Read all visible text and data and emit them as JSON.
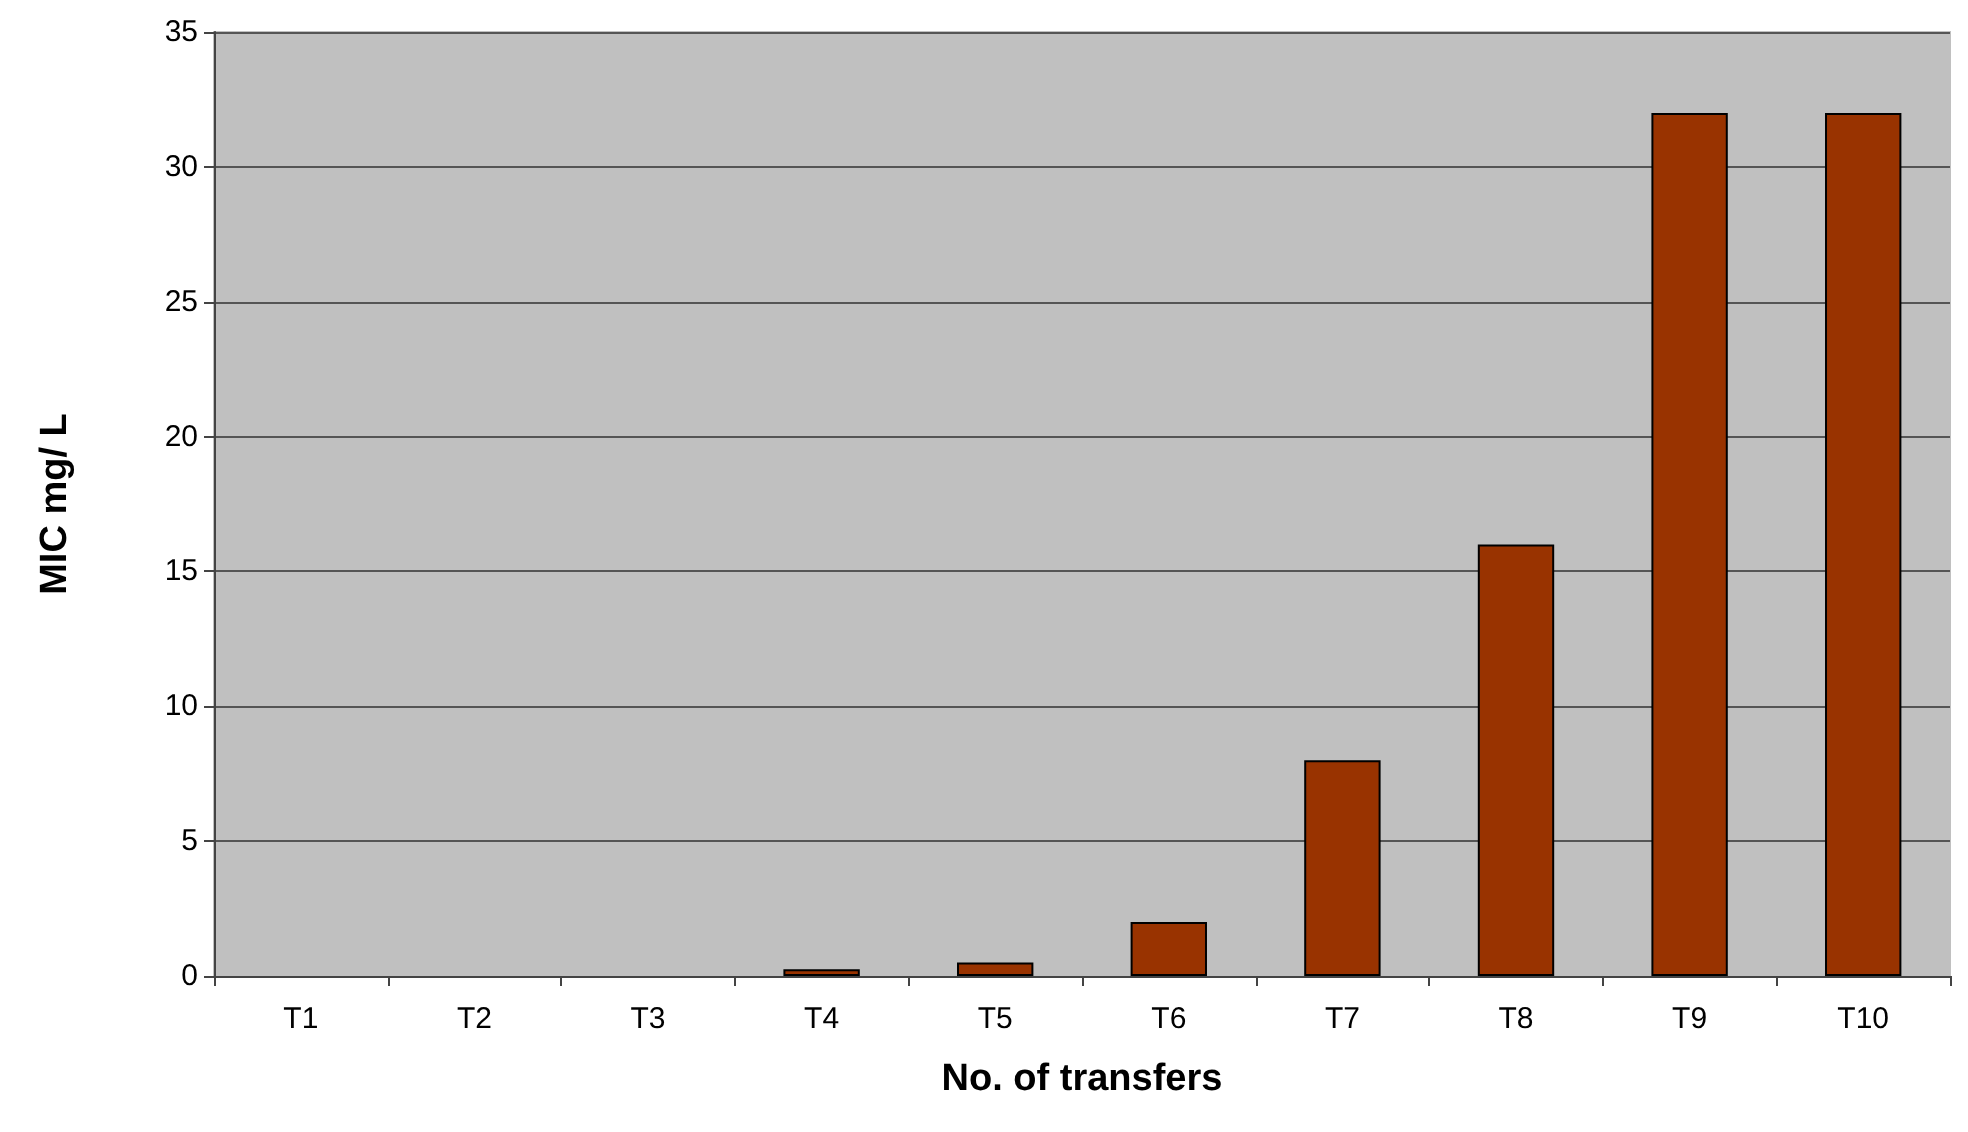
{
  "chart_data": {
    "type": "bar",
    "xlabel": "No. of transfers",
    "ylabel": "MIC mg/ L",
    "categories": [
      "T1",
      "T2",
      "T3",
      "T4",
      "T5",
      "T6",
      "T7",
      "T8",
      "T9",
      "T10"
    ],
    "values": [
      null,
      null,
      null,
      0.25,
      0.5,
      2,
      8,
      16,
      32,
      32
    ],
    "color": "#993300",
    "ylim": [
      0,
      35
    ],
    "yticks": [
      0,
      5,
      10,
      15,
      20,
      25,
      30,
      35
    ],
    "grid": "y"
  }
}
